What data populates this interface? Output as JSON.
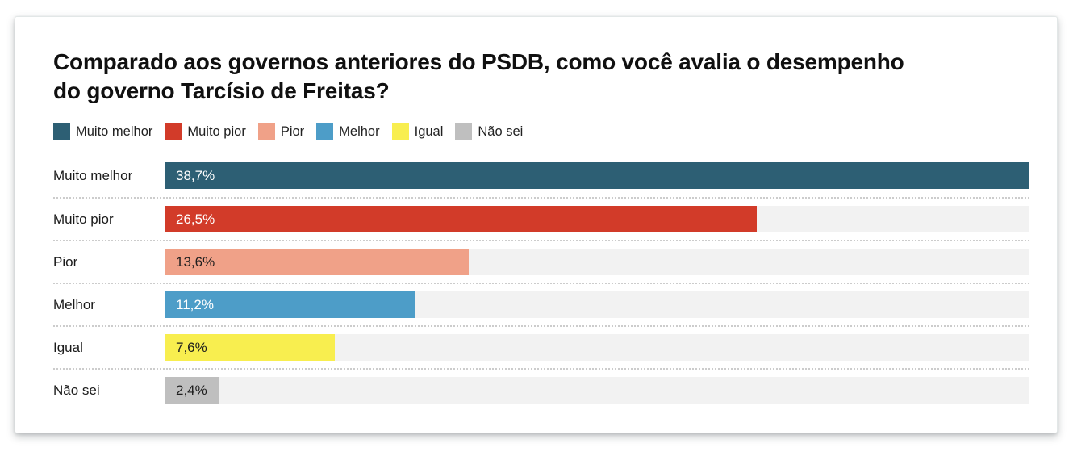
{
  "title": "Comparado aos governos anteriores do PSDB, como você avalia o desempenho do governo Tarcísio de Freitas?",
  "legend": {
    "items": [
      {
        "label": "Muito melhor",
        "color": "#2d5f74"
      },
      {
        "label": "Muito pior",
        "color": "#d23b29"
      },
      {
        "label": "Pior",
        "color": "#f0a188"
      },
      {
        "label": "Melhor",
        "color": "#4d9dc8"
      },
      {
        "label": "Igual",
        "color": "#f8ee4f"
      },
      {
        "label": "Não sei",
        "color": "#bfbfbf"
      }
    ]
  },
  "chart_data": {
    "type": "bar",
    "orientation": "horizontal",
    "title": "Comparado aos governos anteriores do PSDB, como você avalia o desempenho do governo Tarcísio de Freitas?",
    "categories": [
      "Muito melhor",
      "Muito pior",
      "Pior",
      "Melhor",
      "Igual",
      "Não sei"
    ],
    "values": [
      38.7,
      26.5,
      13.6,
      11.2,
      7.6,
      2.4
    ],
    "value_labels": [
      "38,7%",
      "26,5%",
      "13,6%",
      "11,2%",
      "7,6%",
      "2,4%"
    ],
    "bar_colors": [
      "#2d5f74",
      "#d23b29",
      "#f0a188",
      "#4d9dc8",
      "#f8ee4f",
      "#bfbfbf"
    ],
    "value_label_colors": [
      "#ffffff",
      "#ffffff",
      "#1e1e1e",
      "#ffffff",
      "#1e1e1e",
      "#1e1e1e"
    ],
    "track_color": "#f2f2f2",
    "xlim": [
      0,
      38.7
    ],
    "grid": false,
    "legend_position": "top"
  }
}
